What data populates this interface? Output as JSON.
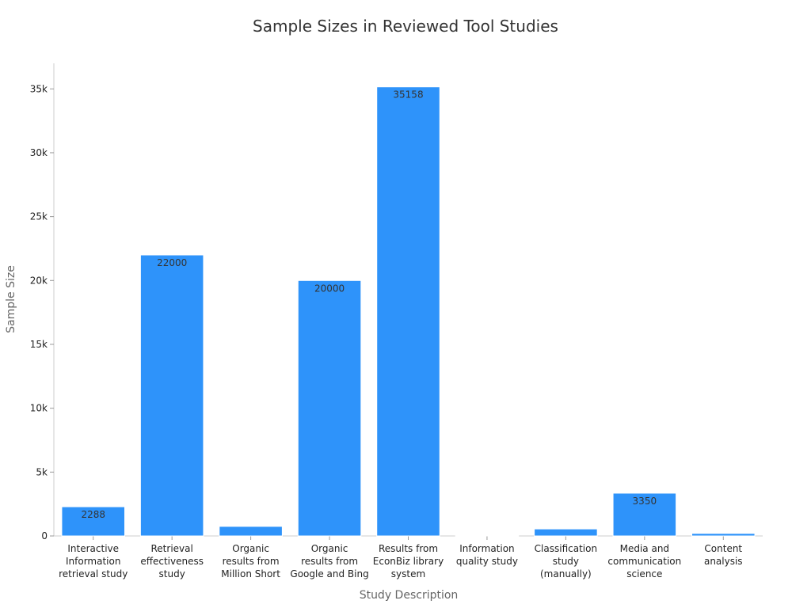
{
  "chart_data": {
    "type": "bar",
    "title": "Sample Sizes in Reviewed Tool Studies",
    "xlabel": "Study Description",
    "ylabel": "Sample Size",
    "ylim": [
      0,
      37000
    ],
    "yticks": [
      0,
      5000,
      10000,
      15000,
      20000,
      25000,
      30000,
      35000
    ],
    "ytick_labels": [
      "0",
      "5k",
      "10k",
      "15k",
      "20k",
      "25k",
      "30k",
      "35k"
    ],
    "grid": false,
    "legend": "none",
    "categories": [
      [
        "Interactive",
        "Information",
        "retrieval study"
      ],
      [
        "Retrieval",
        "effectiveness",
        "study"
      ],
      [
        "Organic",
        "results from",
        "Million Short"
      ],
      [
        "Organic",
        "results from",
        "Google and Bing"
      ],
      [
        "Results from",
        "EconBiz library",
        "system"
      ],
      [
        "Information",
        "quality study"
      ],
      [
        "Classification",
        "study",
        "(manually)"
      ],
      [
        "Media and",
        "communication",
        "science"
      ],
      [
        "Content",
        "analysis"
      ]
    ],
    "values": [
      2288,
      22000,
      750,
      20000,
      35158,
      50,
      550,
      3350,
      200
    ],
    "data_labels": [
      "2288",
      "22000",
      "",
      "20000",
      "35158",
      "",
      "",
      "3350",
      ""
    ],
    "colors": {
      "bar": "#2e93fa",
      "bar_edge": "#ffffff",
      "axis": "#cccccc"
    }
  }
}
